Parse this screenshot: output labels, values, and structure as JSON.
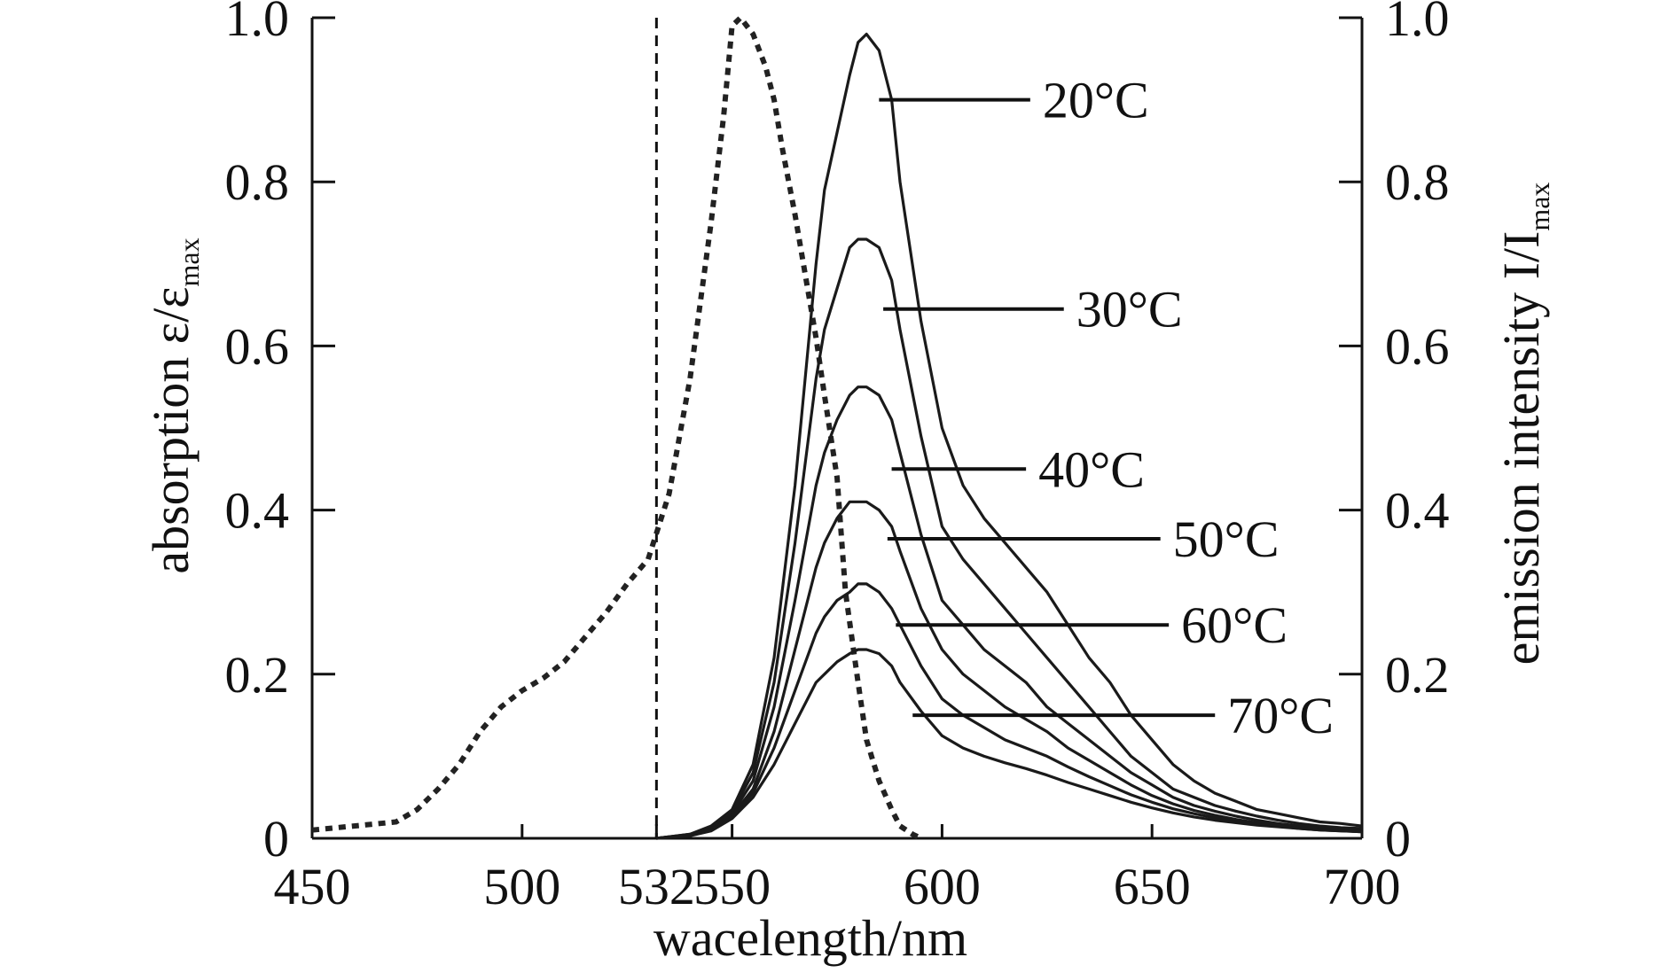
{
  "chart_data": {
    "type": "line",
    "xlabel": "wacelength/nm",
    "ylabel_left": {
      "main": "absorption ε/ε",
      "sub": "max"
    },
    "ylabel_right": {
      "main": "emission intensity I/I",
      "sub": "max"
    },
    "xlim": [
      450,
      700
    ],
    "ylim": [
      0,
      1.0
    ],
    "x_ticks": [
      450,
      500,
      532,
      550,
      600,
      650,
      700
    ],
    "x_tick_labels": [
      "450",
      "500",
      "532",
      "550",
      "600",
      "650",
      "700"
    ],
    "y_ticks": [
      0,
      0.2,
      0.4,
      0.6,
      0.8,
      1.0
    ],
    "y_tick_labels_left": [
      "0",
      "0.2",
      "0.4",
      "0.6",
      "0.8",
      "1.0"
    ],
    "y_tick_labels_right": [
      "0",
      "0.2",
      "0.4",
      "0.6",
      "0.8",
      "1.0"
    ],
    "grid": false,
    "legend": "none",
    "excitation_line_x": 532,
    "absorption": {
      "style": "dotted",
      "x": [
        450,
        460,
        470,
        475,
        480,
        485,
        490,
        495,
        500,
        505,
        510,
        515,
        520,
        525,
        530,
        535,
        540,
        545,
        548,
        550,
        552,
        555,
        558,
        560,
        562,
        565,
        568,
        570,
        572,
        575,
        577,
        580,
        582,
        585,
        588,
        590,
        593,
        595
      ],
      "y": [
        0.01,
        0.015,
        0.02,
        0.035,
        0.06,
        0.09,
        0.13,
        0.16,
        0.18,
        0.195,
        0.215,
        0.245,
        0.275,
        0.31,
        0.34,
        0.42,
        0.56,
        0.75,
        0.88,
        0.99,
        1.0,
        0.98,
        0.94,
        0.9,
        0.84,
        0.76,
        0.67,
        0.61,
        0.54,
        0.44,
        0.3,
        0.19,
        0.12,
        0.07,
        0.035,
        0.015,
        0.005,
        0.0
      ]
    },
    "emission_x": [
      532,
      540,
      545,
      550,
      555,
      560,
      565,
      570,
      572,
      575,
      578,
      580,
      582,
      585,
      588,
      590,
      595,
      600,
      605,
      610,
      615,
      620,
      625,
      630,
      635,
      640,
      645,
      650,
      655,
      660,
      665,
      670,
      675,
      680,
      685,
      690,
      695,
      700
    ],
    "series": [
      {
        "name": "20°C",
        "values": [
          0.0,
          0.005,
          0.015,
          0.035,
          0.09,
          0.22,
          0.43,
          0.7,
          0.79,
          0.86,
          0.93,
          0.97,
          0.98,
          0.96,
          0.9,
          0.8,
          0.63,
          0.5,
          0.43,
          0.39,
          0.36,
          0.33,
          0.3,
          0.26,
          0.22,
          0.19,
          0.15,
          0.12,
          0.09,
          0.07,
          0.055,
          0.045,
          0.035,
          0.03,
          0.025,
          0.02,
          0.018,
          0.015
        ]
      },
      {
        "name": "30°C",
        "values": [
          0.0,
          0.005,
          0.013,
          0.032,
          0.08,
          0.19,
          0.36,
          0.56,
          0.62,
          0.67,
          0.72,
          0.73,
          0.73,
          0.72,
          0.68,
          0.62,
          0.49,
          0.38,
          0.34,
          0.31,
          0.28,
          0.25,
          0.22,
          0.19,
          0.16,
          0.13,
          0.1,
          0.08,
          0.06,
          0.05,
          0.04,
          0.033,
          0.027,
          0.022,
          0.018,
          0.015,
          0.013,
          0.012
        ]
      },
      {
        "name": "40°C",
        "values": [
          0.0,
          0.004,
          0.012,
          0.03,
          0.07,
          0.16,
          0.29,
          0.43,
          0.47,
          0.51,
          0.54,
          0.55,
          0.55,
          0.54,
          0.51,
          0.47,
          0.37,
          0.29,
          0.26,
          0.23,
          0.21,
          0.19,
          0.16,
          0.14,
          0.12,
          0.1,
          0.08,
          0.065,
          0.05,
          0.04,
          0.033,
          0.027,
          0.022,
          0.018,
          0.015,
          0.013,
          0.011,
          0.01
        ]
      },
      {
        "name": "50°C",
        "values": [
          0.0,
          0.004,
          0.011,
          0.028,
          0.06,
          0.13,
          0.23,
          0.33,
          0.36,
          0.39,
          0.41,
          0.41,
          0.41,
          0.4,
          0.38,
          0.35,
          0.28,
          0.23,
          0.2,
          0.18,
          0.16,
          0.145,
          0.13,
          0.11,
          0.095,
          0.08,
          0.065,
          0.052,
          0.042,
          0.034,
          0.028,
          0.023,
          0.019,
          0.016,
          0.013,
          0.011,
          0.01,
          0.009
        ]
      },
      {
        "name": "60°C",
        "values": [
          0.0,
          0.004,
          0.01,
          0.026,
          0.055,
          0.11,
          0.18,
          0.25,
          0.27,
          0.29,
          0.3,
          0.31,
          0.31,
          0.3,
          0.28,
          0.26,
          0.21,
          0.17,
          0.15,
          0.135,
          0.12,
          0.11,
          0.1,
          0.087,
          0.075,
          0.064,
          0.053,
          0.044,
          0.036,
          0.03,
          0.025,
          0.021,
          0.017,
          0.015,
          0.012,
          0.01,
          0.009,
          0.008
        ]
      },
      {
        "name": "70°C",
        "values": [
          0.0,
          0.003,
          0.009,
          0.024,
          0.05,
          0.09,
          0.14,
          0.19,
          0.2,
          0.215,
          0.225,
          0.23,
          0.23,
          0.225,
          0.21,
          0.19,
          0.155,
          0.125,
          0.11,
          0.1,
          0.092,
          0.085,
          0.077,
          0.068,
          0.06,
          0.052,
          0.044,
          0.037,
          0.031,
          0.026,
          0.022,
          0.019,
          0.016,
          0.014,
          0.012,
          0.01,
          0.009,
          0.008
        ]
      }
    ],
    "annotations": [
      {
        "text": "20°C",
        "series": "20°C",
        "anchor_x": 585,
        "anchor_y": 0.9,
        "label_x": 621,
        "label_y": 0.9
      },
      {
        "text": "30°C",
        "series": "30°C",
        "anchor_x": 586,
        "anchor_y": 0.645,
        "label_x": 629,
        "label_y": 0.645
      },
      {
        "text": "40°C",
        "series": "40°C",
        "anchor_x": 588,
        "anchor_y": 0.45,
        "label_x": 620,
        "label_y": 0.45
      },
      {
        "text": "50°C",
        "series": "50°C",
        "anchor_x": 587,
        "anchor_y": 0.365,
        "label_x": 652,
        "label_y": 0.365
      },
      {
        "text": "60°C",
        "series": "60°C",
        "anchor_x": 589,
        "anchor_y": 0.26,
        "label_x": 654,
        "label_y": 0.26
      },
      {
        "text": "70°C",
        "series": "70°C",
        "anchor_x": 593,
        "anchor_y": 0.15,
        "label_x": 665,
        "label_y": 0.15
      }
    ]
  }
}
